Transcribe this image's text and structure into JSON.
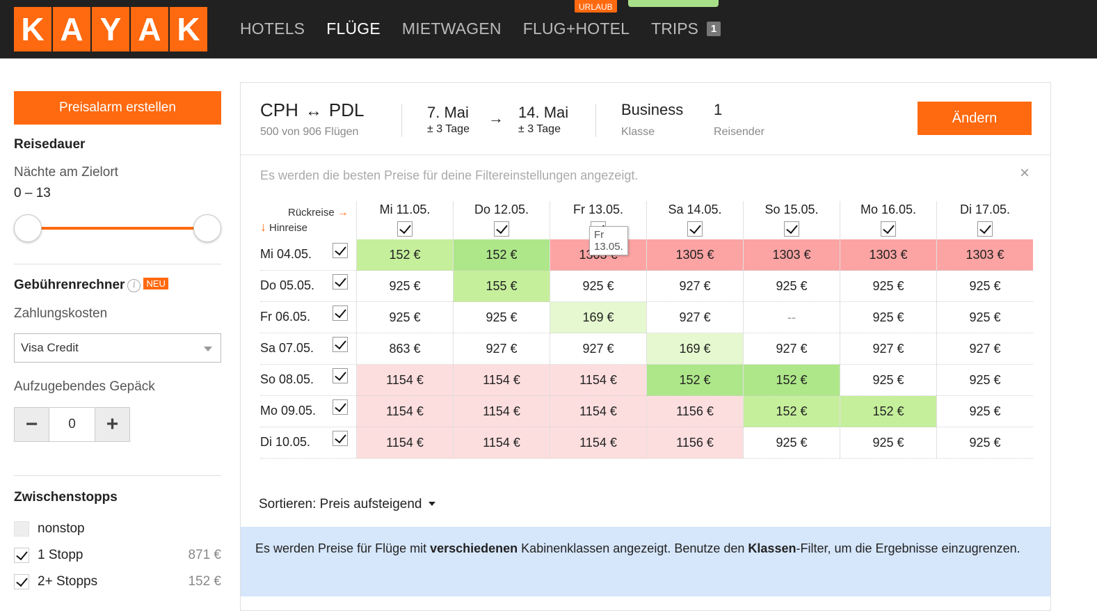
{
  "logo": [
    "K",
    "A",
    "Y",
    "A",
    "K"
  ],
  "nav": {
    "items": [
      "HOTELS",
      "FLÜGE",
      "MIETWAGEN",
      "FLUG+HOTEL",
      "TRIPS"
    ],
    "active": "FLÜGE",
    "trips_badge": "1",
    "urlaub_badge": "URLAUB"
  },
  "sidebar": {
    "alarm_button": "Preisalarm erstellen",
    "duration": {
      "title": "Reisedauer",
      "label": "Nächte am Zielort",
      "range": "0 – 13"
    },
    "fees": {
      "title": "Gebührenrechner",
      "info_icon": "i",
      "new_badge": "NEU",
      "payment_label": "Zahlungskosten",
      "payment_value": "Visa Credit",
      "baggage_label": "Aufzugebendes Gepäck",
      "baggage_count": "0",
      "minus": "−",
      "plus": "+"
    },
    "stops": {
      "title": "Zwischenstopps",
      "items": [
        {
          "label": "nonstop",
          "price": "",
          "checked": false
        },
        {
          "label": "1 Stopp",
          "price": "871 €",
          "checked": true
        },
        {
          "label": "2+ Stopps",
          "price": "152 €",
          "checked": true
        }
      ]
    }
  },
  "summary": {
    "from": "CPH",
    "to": "PDL",
    "route_arrow": "↔",
    "flights_count": "500 von 906 Flügen",
    "depart_date": "7. Mai",
    "depart_flex": "± 3 Tage",
    "date_arrow": "→",
    "return_date": "14. Mai",
    "return_flex": "± 3 Tage",
    "cabin": "Business",
    "cabin_label": "Klasse",
    "travelers": "1",
    "travelers_label": "Reisender",
    "change_button": "Ändern"
  },
  "matrix": {
    "notice": "Es werden die besten Preise für deine Filtereinstellungen angezeigt.",
    "close": "×",
    "return_label": "Rückreise",
    "return_arrow": "→",
    "outbound_label": "Hinreise",
    "outbound_arrow": "↓",
    "tooltip": "Fr 13.05.",
    "columns": [
      "Mi 11.05.",
      "Do 12.05.",
      "Fr 13.05.",
      "Sa 14.05.",
      "So 15.05.",
      "Mo 16.05.",
      "Di 17.05."
    ],
    "rows": [
      {
        "label": "Mi 04.05.",
        "cells": [
          "152 €",
          "152 €",
          "1303 €",
          "1305 €",
          "1303 €",
          "1303 €",
          "1303 €"
        ],
        "tones": [
          "g1",
          "g2",
          "r1",
          "r1",
          "r1",
          "r1",
          "r1"
        ]
      },
      {
        "label": "Do 05.05.",
        "cells": [
          "925 €",
          "155 €",
          "925 €",
          "927 €",
          "925 €",
          "925 €",
          "925 €"
        ],
        "tones": [
          "",
          "g1",
          "",
          "",
          "",
          "",
          ""
        ]
      },
      {
        "label": "Fr 06.05.",
        "cells": [
          "925 €",
          "925 €",
          "169 €",
          "927 €",
          "--",
          "925 €",
          "925 €"
        ],
        "tones": [
          "",
          "",
          "g3",
          "",
          "dash",
          "",
          ""
        ]
      },
      {
        "label": "Sa 07.05.",
        "cells": [
          "863 €",
          "927 €",
          "927 €",
          "169 €",
          "927 €",
          "927 €",
          "927 €"
        ],
        "tones": [
          "",
          "",
          "",
          "g3",
          "",
          "",
          ""
        ]
      },
      {
        "label": "So 08.05.",
        "cells": [
          "1154 €",
          "1154 €",
          "1154 €",
          "152 €",
          "152 €",
          "925 €",
          "925 €"
        ],
        "tones": [
          "r2",
          "r2",
          "r2",
          "g2",
          "g2",
          "",
          ""
        ]
      },
      {
        "label": "Mo 09.05.",
        "cells": [
          "1154 €",
          "1154 €",
          "1154 €",
          "1156 €",
          "152 €",
          "152 €",
          "925 €"
        ],
        "tones": [
          "r2",
          "r2",
          "r2",
          "r2",
          "g1",
          "g1",
          ""
        ]
      },
      {
        "label": "Di 10.05.",
        "cells": [
          "1154 €",
          "1154 €",
          "1154 €",
          "1156 €",
          "925 €",
          "925 €",
          "925 €"
        ],
        "tones": [
          "r2",
          "r2",
          "r2",
          "r2",
          "",
          "",
          ""
        ]
      }
    ]
  },
  "sort": {
    "label": "Sortieren:",
    "value": "Preis aufsteigend"
  },
  "info_box": {
    "part1": "Es werden Preise für Flüge mit ",
    "bold1": "verschiedenen",
    "part2": " Kabinenklassen angezeigt. Benutze den ",
    "bold2": "Klassen",
    "part3": "-Filter, um die Ergebnisse einzugrenzen."
  },
  "colors": {
    "brand_orange": "#ff690f",
    "green_dark": "#aee789",
    "green": "#c5ef9b",
    "green_light": "#e5f8cf",
    "red": "#fca3a3",
    "red_light": "#fddede",
    "info_blue": "#d6e6fb"
  }
}
